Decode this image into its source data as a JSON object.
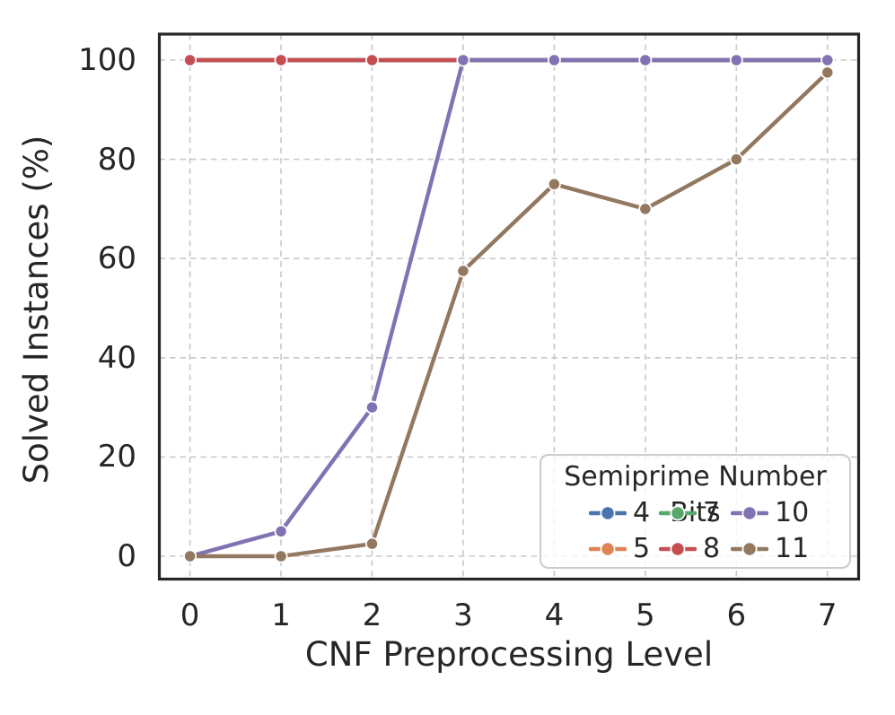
{
  "chart_data": {
    "type": "line",
    "title": "",
    "xlabel": "CNF Preprocessing Level",
    "ylabel": "Solved Instances (%)",
    "x": [
      0,
      1,
      2,
      3,
      4,
      5,
      6,
      7
    ],
    "xticks": [
      "0",
      "1",
      "2",
      "3",
      "4",
      "5",
      "6",
      "7"
    ],
    "yticks": [
      "0",
      "20",
      "40",
      "60",
      "80",
      "100"
    ],
    "ytick_values": [
      0,
      20,
      40,
      60,
      80,
      100
    ],
    "xlim": [
      -0.35,
      7.35
    ],
    "ylim": [
      -5,
      105
    ],
    "grid": "dashed-both-axes",
    "marker": "circle",
    "legend": {
      "title": "Semiprime Number Bits",
      "position": "lower-right",
      "columns": 3,
      "row_order": [
        [
          "4",
          "7",
          "10"
        ],
        [
          "5",
          "8",
          "11"
        ]
      ]
    },
    "series": [
      {
        "name": "4",
        "color": "#4C72B0",
        "values": [
          100,
          100,
          100,
          100,
          100,
          100,
          100,
          100
        ]
      },
      {
        "name": "5",
        "color": "#DD8452",
        "values": [
          100,
          100,
          100,
          100,
          100,
          100,
          100,
          100
        ]
      },
      {
        "name": "7",
        "color": "#55A868",
        "values": [
          100,
          100,
          100,
          100,
          100,
          100,
          100,
          100
        ]
      },
      {
        "name": "8",
        "color": "#C44E52",
        "values": [
          100,
          100,
          100,
          100,
          100,
          100,
          100,
          100
        ]
      },
      {
        "name": "10",
        "color": "#8172B3",
        "values": [
          0,
          5,
          30,
          100,
          100,
          100,
          100,
          100
        ]
      },
      {
        "name": "11",
        "color": "#937860",
        "values": [
          0,
          0,
          2.5,
          57.5,
          75,
          70,
          80,
          97.5
        ]
      }
    ],
    "style": {
      "grid_color": "#c9c9c9",
      "spine_color": "#262626",
      "text_color": "#262626",
      "background": "#ffffff",
      "legend_border": "#cccccc"
    }
  }
}
